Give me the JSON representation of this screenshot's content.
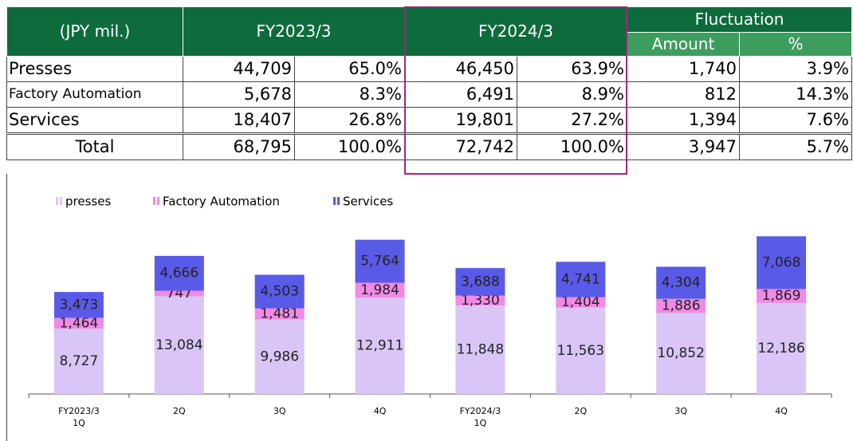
{
  "table": {
    "header": {
      "label": "(JPY mil.)",
      "fy1": "FY2023/3",
      "fy2": "FY2024/3",
      "fluct": "Fluctuation",
      "amount": "Amount",
      "pct": "%"
    },
    "rows": [
      [
        "Presses",
        "44,709",
        "65.0%",
        "46,450",
        "63.9%",
        "1,740",
        "3.9%"
      ],
      [
        "Factory Automation",
        "5,678",
        "8.3%",
        "6,491",
        "8.9%",
        "812",
        "14.3%"
      ],
      [
        "Services",
        "18,407",
        "26.8%",
        "19,801",
        "27.2%",
        "1,394",
        "7.6%"
      ],
      [
        "Total",
        "68,795",
        "100.0%",
        "72,742",
        "100.0%",
        "3,947",
        "5.7%"
      ]
    ]
  },
  "chart_data": {
    "type": "stacked_bar",
    "categories": [
      "FY2023/3\n1Q",
      "2Q",
      "3Q",
      "4Q",
      "FY2024/3\n1Q",
      "2Q",
      "3Q",
      "4Q"
    ],
    "ylim": [
      0,
      25000
    ],
    "series": [
      {
        "name": "presses",
        "color": "#d9c6f7",
        "values": [
          8727,
          13084,
          9986,
          12911,
          11848,
          11563,
          10852,
          12186
        ],
        "value_labels": [
          "8,727",
          "13,084",
          "9,986",
          "12,911",
          "11,848",
          "11,563",
          "10,852",
          "12,186"
        ]
      },
      {
        "name": "Factory Automation",
        "color": "#f08ae6",
        "values": [
          1464,
          747,
          1481,
          1984,
          1330,
          1404,
          1886,
          1869
        ],
        "value_labels": [
          "1,464",
          "747",
          "1,481",
          "1,984",
          "1,330",
          "1,404",
          "1,886",
          "1,869"
        ]
      },
      {
        "name": "Services",
        "color": "#5a5ae8",
        "values": [
          3473,
          4666,
          4503,
          5764,
          3688,
          4741,
          4304,
          7068
        ],
        "value_labels": [
          "3,473",
          "4,666",
          "4,503",
          "5,764",
          "3,688",
          "4,741",
          "4,304",
          "7,068"
        ]
      }
    ]
  }
}
